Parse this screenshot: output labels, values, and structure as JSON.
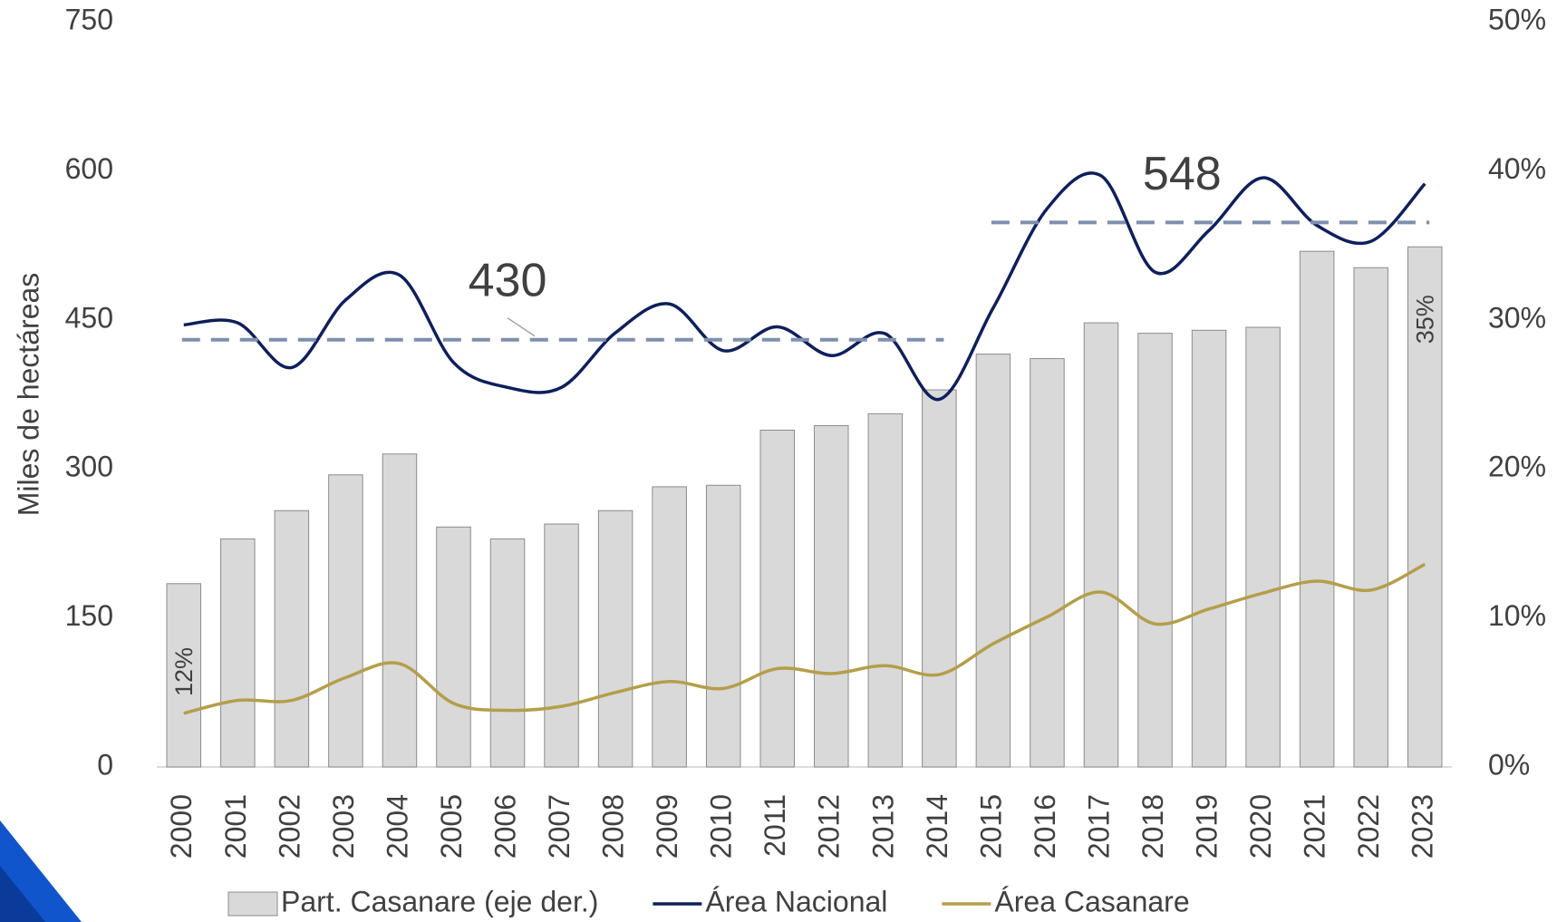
{
  "chart_data": {
    "type": "bar_line",
    "y_axis_label": "Miles de hectáreas",
    "categories": [
      "2000",
      "2001",
      "2002",
      "2003",
      "2004",
      "2005",
      "2006",
      "2007",
      "2008",
      "2009",
      "2010",
      "2011",
      "2012",
      "2013",
      "2014",
      "2015",
      "2016",
      "2017",
      "2018",
      "2019",
      "2020",
      "2021",
      "2022",
      "2023"
    ],
    "series": [
      {
        "name": "Part. Casanare (eje der.)",
        "type": "bar",
        "axis": "y2",
        "color": "#d9d9d9",
        "values": [
          12.3,
          15.3,
          17.2,
          19.6,
          21.0,
          16.1,
          15.3,
          16.3,
          17.2,
          18.8,
          18.9,
          22.6,
          22.9,
          23.7,
          25.3,
          27.7,
          27.4,
          29.8,
          29.1,
          29.3,
          29.5,
          34.6,
          33.5,
          34.9
        ],
        "value_labels": [
          "12%",
          null,
          null,
          null,
          null,
          null,
          null,
          null,
          null,
          null,
          null,
          null,
          null,
          null,
          null,
          null,
          null,
          null,
          null,
          null,
          null,
          null,
          null,
          "35%"
        ]
      },
      {
        "name": "Área Nacional",
        "type": "line",
        "color": "#0d1f5c",
        "values": [
          445,
          447,
          402,
          470,
          495,
          407,
          382,
          382,
          437,
          466,
          419,
          443,
          414,
          436,
          370,
          462,
          562,
          595,
          498,
          540,
          593,
          545,
          529,
          587
        ]
      },
      {
        "name": "Área Casanare",
        "type": "line",
        "color": "#b59e4a",
        "values": [
          54,
          67,
          67,
          90,
          104,
          64,
          57,
          61,
          75,
          86,
          79,
          99,
          94,
          102,
          93,
          124,
          151,
          176,
          144,
          159,
          175,
          187,
          178,
          204
        ]
      }
    ],
    "averages": [
      {
        "value": 430,
        "from": "2000",
        "to": "2014",
        "color": "#7f8fad"
      },
      {
        "value": 548,
        "from": "2015",
        "to": "2023",
        "color": "#7f8fad"
      }
    ],
    "ylim": [
      0,
      750
    ],
    "yticks": [
      0,
      150,
      300,
      450,
      600,
      750
    ],
    "y2lim": [
      0,
      50
    ],
    "y2ticks": [
      {
        "value": 0,
        "label": "0%"
      },
      {
        "value": 10,
        "label": "10%"
      },
      {
        "value": 20,
        "label": "20%"
      },
      {
        "value": 30,
        "label": "30%"
      },
      {
        "value": 40,
        "label": "40%"
      },
      {
        "value": 50,
        "label": "50%"
      }
    ]
  }
}
